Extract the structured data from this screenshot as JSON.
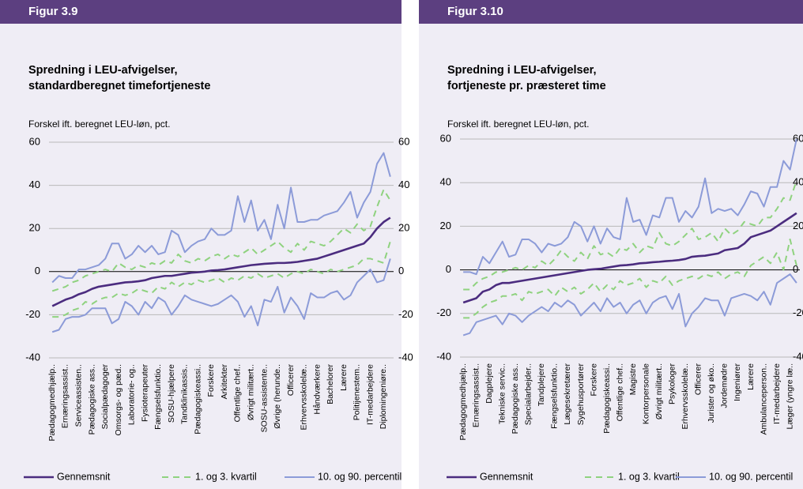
{
  "chart_data": [
    {
      "type": "line",
      "figure": "Figur 3.9",
      "title": [
        "Spredning i LEU-afvigelser,",
        "standardberegnet timefortjeneste"
      ],
      "y_label": "Forskel ift. beregnet LEU-løn, pct.",
      "categories": [
        "Pædagogmedhjælp..",
        null,
        "Ernæringsassist..",
        null,
        "Serviceassisten..",
        null,
        "Pædagogiske ass..",
        null,
        "Socialpædagoger",
        null,
        "Omsorgs- og pæd..",
        null,
        "Laboratorie- og..",
        null,
        "Fysioterapeuter",
        null,
        "Fængselsfunktio..",
        null,
        "SOSU-hjælpere",
        null,
        "Tandklinikassis..",
        null,
        "Pædagogiskeassi..",
        null,
        "Forskere",
        null,
        "Arkitekter",
        null,
        "Offentlige chef..",
        null,
        "Øvrigt militært..",
        null,
        "SOSU-assistente..",
        null,
        "Øvrige (herunde..",
        null,
        "Officerer",
        null,
        "Erhvervsskolelæ..",
        null,
        "Håndværkere",
        null,
        "Bachelorer",
        null,
        "Lærere",
        null,
        "Politijenestem..",
        null,
        "IT-medarbejdere",
        null,
        "Diplomingeniøre..",
        null
      ],
      "ylim": [
        -40,
        60
      ],
      "yticks": [
        -40,
        -20,
        0,
        20,
        40,
        60
      ],
      "grid": true,
      "series": [
        {
          "name": "Gennemsnit",
          "color": "#4b2c7f",
          "style": "solid",
          "values": [
            -16,
            -14.5,
            -13,
            -12,
            -10.5,
            -9.5,
            -8,
            -7,
            -6.5,
            -6,
            -5.5,
            -5,
            -4.8,
            -4.5,
            -4,
            -3,
            -2.5,
            -2,
            -2,
            -1.5,
            -1,
            -0.5,
            -0.3,
            0,
            0.5,
            0.7,
            1,
            1.5,
            2,
            2.5,
            3,
            3.3,
            3.6,
            3.8,
            4,
            4,
            4.2,
            4.5,
            5,
            5.5,
            6,
            7,
            8,
            9,
            10,
            11,
            12,
            13,
            16,
            20,
            23,
            25
          ]
        },
        {
          "name": "1. og 3. kvartil",
          "color": "#8fd27f",
          "style": "dashed",
          "values": [
            -21,
            -21,
            -20,
            -18,
            -17,
            -14,
            -15,
            -13,
            -12,
            -12,
            -10,
            -11,
            -10,
            -8,
            -9,
            -10,
            -7,
            -8,
            -5,
            -7,
            -5,
            -6,
            -4,
            -5,
            -4,
            -3,
            -5,
            -3,
            -4,
            -2,
            -3,
            -1,
            -3,
            -2,
            -1,
            -3,
            -1,
            0,
            -1,
            1,
            0,
            -1,
            1,
            0,
            1,
            2,
            3,
            6,
            6,
            5,
            4,
            14
          ],
          "values_upper": [
            -9,
            -8,
            -7,
            -5,
            -4,
            -2,
            -1,
            0,
            1,
            0,
            4,
            2,
            1,
            3,
            2,
            4,
            3,
            5,
            4,
            8,
            5,
            4,
            6,
            5,
            7,
            8,
            6,
            8,
            7,
            9,
            11,
            8,
            10,
            12,
            14,
            11,
            9,
            13,
            10,
            14,
            13,
            12,
            14,
            17,
            20,
            18,
            22,
            19,
            21,
            30,
            38,
            33
          ]
        },
        {
          "name": "10. og 90. percentil",
          "color": "#8c9bd8",
          "style": "solid",
          "values": [
            -28,
            -27,
            -22,
            -21,
            -21,
            -20,
            -17,
            -17,
            -17,
            -24,
            -22,
            -14,
            -16,
            -20,
            -14,
            -17,
            -12,
            -14,
            -20,
            -16,
            -11,
            -13,
            -14,
            -15,
            -16,
            -15,
            -13,
            -11,
            -14,
            -21,
            -16,
            -25,
            -13,
            -14,
            -7,
            -19,
            -12,
            -16,
            -22,
            -10,
            -12,
            -12,
            -10,
            -9,
            -13,
            -11,
            -5,
            -2,
            1,
            -5,
            -4,
            6
          ],
          "values_upper": [
            -5,
            -2,
            -3,
            -3,
            1,
            1,
            2,
            3,
            6,
            13,
            13,
            6,
            8,
            12,
            9,
            12,
            8,
            9,
            19,
            17,
            9,
            12,
            14,
            15,
            20,
            17,
            17,
            19,
            35,
            23,
            33,
            19,
            24,
            15,
            31,
            20,
            39,
            23,
            23,
            24,
            24,
            26,
            27,
            28,
            32,
            37,
            25,
            32,
            37,
            50,
            55,
            44
          ]
        }
      ]
    },
    {
      "type": "line",
      "figure": "Figur 3.10",
      "title": [
        "Spredning i LEU-afvigelser,",
        "fortjeneste pr. præsteret time"
      ],
      "y_label": "Forskel ift. beregnet LEU-løn, pct.",
      "categories": [
        "Pædagogmedhjælp..",
        null,
        "Ernæringsassist..",
        null,
        "Dagplejere",
        null,
        "Tekniske servic..",
        null,
        "Pædagogiske ass..",
        null,
        "Specialarbejder..",
        null,
        "Tandplejere",
        null,
        "Fængselsfunktio..",
        null,
        "Lægesekretærer",
        null,
        "Sygehusportører",
        null,
        "Forskere",
        null,
        "Pædagogiskeassi..",
        null,
        "Offentlige chef..",
        null,
        "Magistre",
        null,
        "Kontorpersonale",
        null,
        "Øvrigt militært..",
        null,
        "Psykologer",
        null,
        "Erhvervsskolelæ..",
        null,
        "Officerer",
        null,
        "Jurister og øko..",
        null,
        "Jordemødre",
        null,
        "Ingeniører",
        null,
        "Lærere",
        null,
        "Ambulanceperson..",
        null,
        "IT-medarbejdere",
        null,
        "Læger (yngre læ..",
        null
      ],
      "ylim": [
        -40,
        60
      ],
      "yticks": [
        -40,
        -20,
        0,
        20,
        40,
        60
      ],
      "grid": true,
      "series": [
        {
          "name": "Gennemsnit",
          "color": "#4b2c7f",
          "style": "solid",
          "values": [
            -15,
            -14,
            -13,
            -10,
            -9,
            -7,
            -6,
            -6,
            -5.5,
            -5,
            -4.5,
            -4,
            -3.5,
            -3,
            -2.5,
            -2,
            -1.5,
            -1,
            -0.5,
            0,
            0.3,
            0.5,
            1,
            1.5,
            2,
            2.2,
            2.5,
            3,
            3.2,
            3.5,
            3.7,
            4,
            4.2,
            4.5,
            5,
            6,
            6.3,
            6.5,
            7,
            7.5,
            9,
            9.5,
            10,
            12,
            15,
            16,
            17,
            18,
            20,
            22,
            24,
            26
          ]
        },
        {
          "name": "1. og 3. kvartil",
          "color": "#8fd27f",
          "style": "dashed",
          "values": [
            -22,
            -22,
            -20,
            -17,
            -15,
            -14,
            -12,
            -12,
            -11,
            -14,
            -10,
            -11,
            -10,
            -9,
            -12,
            -8,
            -10,
            -8,
            -11,
            -9,
            -6,
            -10,
            -7,
            -9,
            -5,
            -7,
            -6,
            -4,
            -8,
            -5,
            -6,
            -3,
            -7,
            -5,
            -4,
            -3,
            -4,
            -2,
            -3,
            -1,
            -4,
            -2,
            -1,
            -3,
            2,
            4,
            6,
            3,
            8,
            0,
            14,
            2
          ],
          "values_upper": [
            -9,
            -9,
            -6,
            -4,
            -3,
            -1,
            -1,
            0,
            1,
            0,
            2,
            1,
            4,
            2,
            5,
            9,
            6,
            4,
            8,
            5,
            11,
            7,
            8,
            6,
            10,
            9,
            12,
            8,
            11,
            10,
            17,
            12,
            11,
            13,
            16,
            19,
            14,
            15,
            17,
            13,
            19,
            16,
            18,
            22,
            21,
            20,
            24,
            24,
            28,
            33,
            32,
            41
          ]
        },
        {
          "name": "10. og 90. percentil",
          "color": "#8c9bd8",
          "style": "solid",
          "values": [
            -30,
            -29,
            -24,
            -23,
            -22,
            -21,
            -25,
            -20,
            -21,
            -24,
            -21,
            -19,
            -17,
            -19,
            -15,
            -17,
            -14,
            -16,
            -21,
            -18,
            -15,
            -19,
            -13,
            -17,
            -15,
            -20,
            -16,
            -14,
            -20,
            -15,
            -13,
            -12,
            -18,
            -11,
            -26,
            -20,
            -17,
            -13,
            -14,
            -14,
            -21,
            -13,
            -12,
            -11,
            -12,
            -14,
            -10,
            -16,
            -6,
            -4,
            -2,
            -6
          ],
          "values_upper": [
            -1,
            -1,
            -2,
            6,
            3,
            8,
            13,
            6,
            7,
            14,
            14,
            12,
            8,
            12,
            11,
            12,
            15,
            22,
            20,
            13,
            20,
            12,
            19,
            15,
            14,
            33,
            22,
            23,
            16,
            25,
            24,
            33,
            33,
            22,
            27,
            24,
            29,
            42,
            26,
            28,
            27,
            28,
            25,
            30,
            36,
            35,
            29,
            38,
            38,
            50,
            46,
            60
          ]
        }
      ]
    }
  ]
}
